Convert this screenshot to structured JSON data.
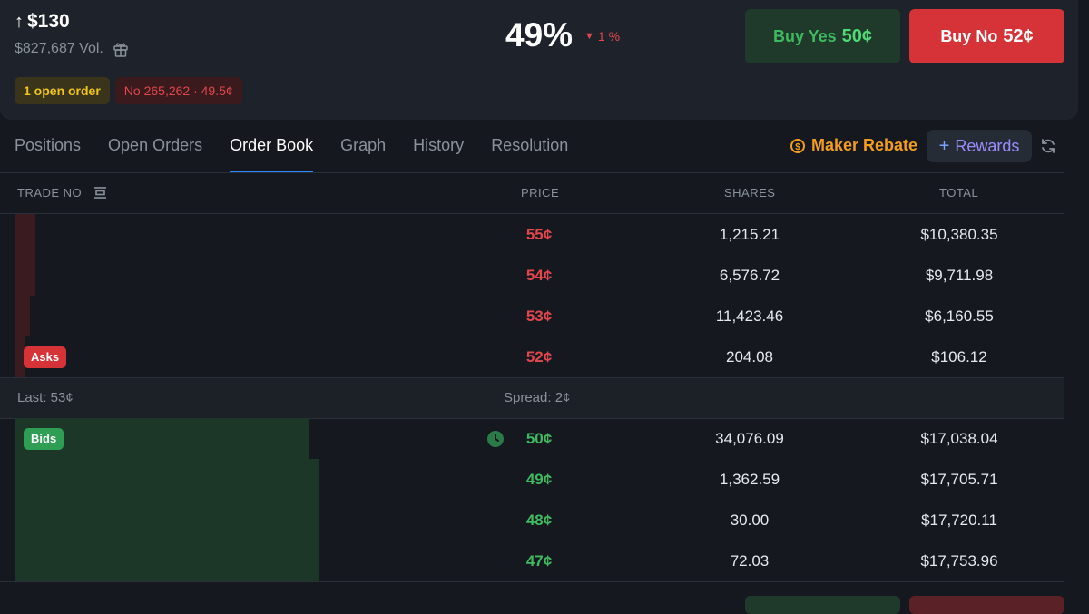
{
  "header": {
    "arrow": "↑",
    "position_value": "$130",
    "volume": "$827,687 Vol.",
    "open_orders_badge": "1 open order",
    "no_badge": "No 265,262 · 49.5¢",
    "probability": "49%",
    "change_arrow": "▼",
    "change": "1 %",
    "buy_yes_label": "Buy Yes",
    "buy_yes_price": "50¢",
    "buy_no_label": "Buy No",
    "buy_no_price": "52¢"
  },
  "tabs": [
    "Positions",
    "Open Orders",
    "Order Book",
    "Graph",
    "History",
    "Resolution"
  ],
  "active_tab": "Order Book",
  "toolbar": {
    "maker_rebate": "Maker Rebate",
    "coin_symbol": "$",
    "rewards": "Rewards",
    "rewards_plus": "+"
  },
  "book": {
    "header": {
      "trade": "TRADE NO",
      "price": "PRICE",
      "shares": "SHARES",
      "total": "TOTAL"
    },
    "asks": [
      {
        "price": "55¢",
        "shares": "1,215.21",
        "total": "$10,380.35",
        "depth": 0.02
      },
      {
        "price": "54¢",
        "shares": "6,576.72",
        "total": "$9,711.98",
        "depth": 0.02
      },
      {
        "price": "53¢",
        "shares": "11,423.46",
        "total": "$6,160.55",
        "depth": 0.015
      },
      {
        "price": "52¢",
        "shares": "204.08",
        "total": "$106.12",
        "depth": 0.01
      }
    ],
    "asks_tag": "Asks",
    "last": "Last: 53¢",
    "spread": "Spread: 2¢",
    "bids": [
      {
        "price": "50¢",
        "shares": "34,076.09",
        "total": "$17,038.04",
        "depth": 0.28
      },
      {
        "price": "49¢",
        "shares": "1,362.59",
        "total": "$17,705.71",
        "depth": 0.29
      },
      {
        "price": "48¢",
        "shares": "30.00",
        "total": "$17,720.11",
        "depth": 0.29
      },
      {
        "price": "47¢",
        "shares": "72.03",
        "total": "$17,753.96",
        "depth": 0.29
      }
    ],
    "bids_tag": "Bids"
  },
  "colors": {
    "ask": "#e2474d",
    "bid": "#3fb95f",
    "accent": "#2f87ff",
    "maker": "#f39c1d"
  }
}
